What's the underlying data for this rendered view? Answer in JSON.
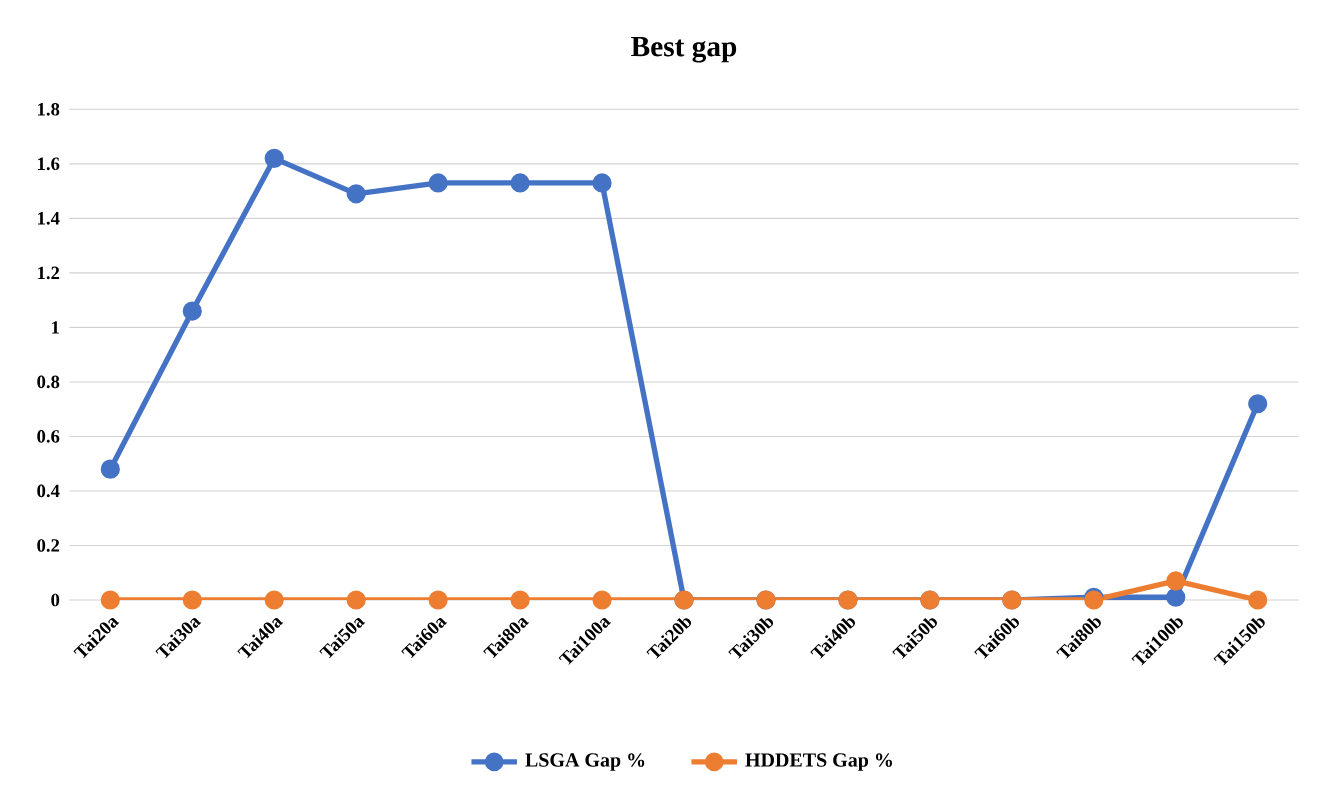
{
  "chart_data": {
    "type": "line",
    "title": "Best gap",
    "categories": [
      "Tai20a",
      "Tai30a",
      "Tai40a",
      "Tai50a",
      "Tai60a",
      "Tai80a",
      "Tai100a",
      "Tai20b",
      "Tai30b",
      "Tai40b",
      "Tai50b",
      "Tai60b",
      "Tai80b",
      "Tai100b",
      "Tai150b"
    ],
    "series": [
      {
        "name": "LSGA Gap %",
        "color": "#4472c4",
        "values": [
          0.48,
          1.06,
          1.62,
          1.49,
          1.53,
          1.53,
          1.53,
          0,
          0,
          0,
          0,
          0,
          0.01,
          0.01,
          0.72
        ]
      },
      {
        "name": "HDDETS Gap %",
        "color": "#ed7d31",
        "values": [
          0,
          0,
          0,
          0,
          0,
          0,
          0,
          0,
          0,
          0,
          0,
          0,
          0,
          0.07,
          0
        ]
      }
    ],
    "ylim": [
      0,
      1.8
    ],
    "yticks": [
      0,
      0.2,
      0.4,
      0.6,
      0.8,
      1,
      1.2,
      1.4,
      1.6,
      1.8
    ],
    "grid": "y",
    "legend": "bottom",
    "marker": "circle",
    "line_style": "solid"
  }
}
